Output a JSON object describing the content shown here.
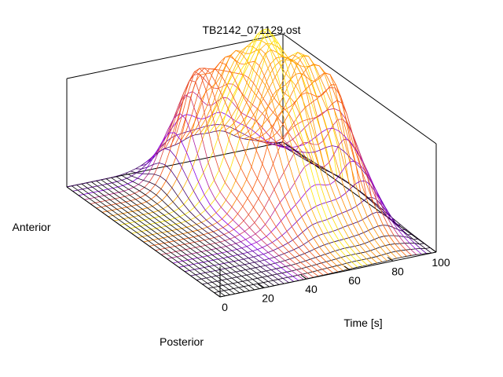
{
  "chart_data": {
    "type": "surface",
    "title": "TB2142_071129.ost",
    "xlabel": "Time [s]",
    "y_axis_labels": {
      "near": "Posterior",
      "far": "Anterior"
    },
    "x_ticks": [
      0,
      20,
      40,
      60,
      80,
      100
    ],
    "xlim": [
      0,
      100
    ],
    "grid": false,
    "colormap": [
      "#000000",
      "#8a00e6",
      "#ff6000",
      "#ffea00"
    ]
  }
}
